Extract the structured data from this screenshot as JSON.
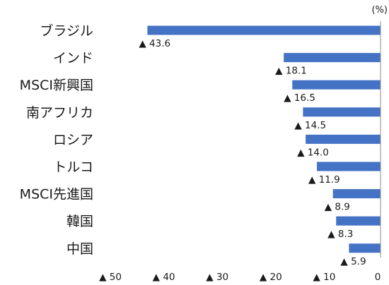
{
  "chart_data": {
    "type": "bar",
    "orientation": "horizontal",
    "unit": "(%)",
    "categories": [
      "ブラジル",
      "インド",
      "MSCI新興国",
      "南アフリカ",
      "ロシア",
      "トルコ",
      "MSCI先進国",
      "韓国",
      "中国"
    ],
    "values": [
      -43.6,
      -18.1,
      -16.5,
      -14.5,
      -14.0,
      -11.9,
      -8.9,
      -8.3,
      -5.9
    ],
    "value_labels": [
      "▲ 43.6",
      "▲ 18.1",
      "▲ 16.5",
      "▲ 14.5",
      "▲ 14.0",
      "▲ 11.9",
      "▲ 8.9",
      "▲ 8.3",
      "▲ 5.9"
    ],
    "xlim": [
      -50,
      0
    ],
    "x_ticks": [
      -50,
      -40,
      -30,
      -20,
      -10,
      0
    ],
    "x_tick_labels": [
      "▲ 50",
      "▲ 40",
      "▲ 30",
      "▲ 20",
      "▲ 10",
      "0"
    ],
    "bar_color": "#4472C4",
    "grid": false,
    "legend": "none"
  }
}
